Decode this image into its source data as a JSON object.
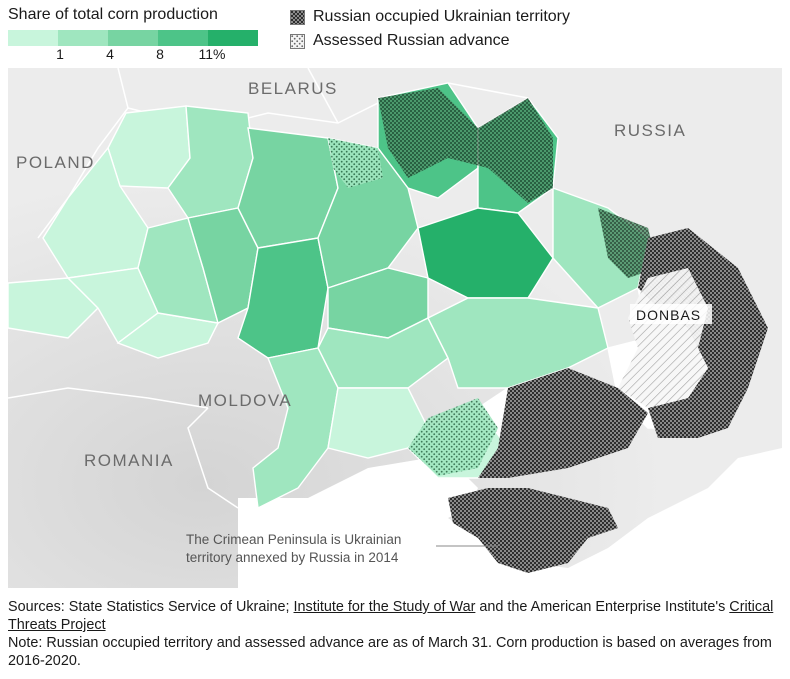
{
  "legend": {
    "title": "Share of total corn production",
    "scale_colors": [
      "#c8f5dc",
      "#9fe6bf",
      "#77d4a2",
      "#4dc488",
      "#25b06a"
    ],
    "tick_labels": [
      "1",
      "4",
      "8",
      "11%"
    ],
    "occupied_label": "Russian occupied Ukrainian territory",
    "advance_label": "Assessed Russian advance"
  },
  "map": {
    "labels": {
      "belarus": "BELARUS",
      "russia": "RUSSIA",
      "poland": "POLAND",
      "moldova": "MOLDOVA",
      "romania": "ROMANIA",
      "donbas": "DONBAS"
    },
    "crimea_note_line1": "The Crimean Peninsula is Ukrainian",
    "crimea_note_line2": "territory annexed by Russia in 2014"
  },
  "footer": {
    "sources_prefix": "Sources: State Statistics Service of Ukraine; ",
    "source_link1": "Institute for the Study of War",
    "sources_mid": " and the American Enterprise Institute's ",
    "source_link2": "Critical Threats Project",
    "note": "Note: Russian occupied territory and assessed advance are as of March 31. Corn production is based on averages from 2016-2020."
  }
}
